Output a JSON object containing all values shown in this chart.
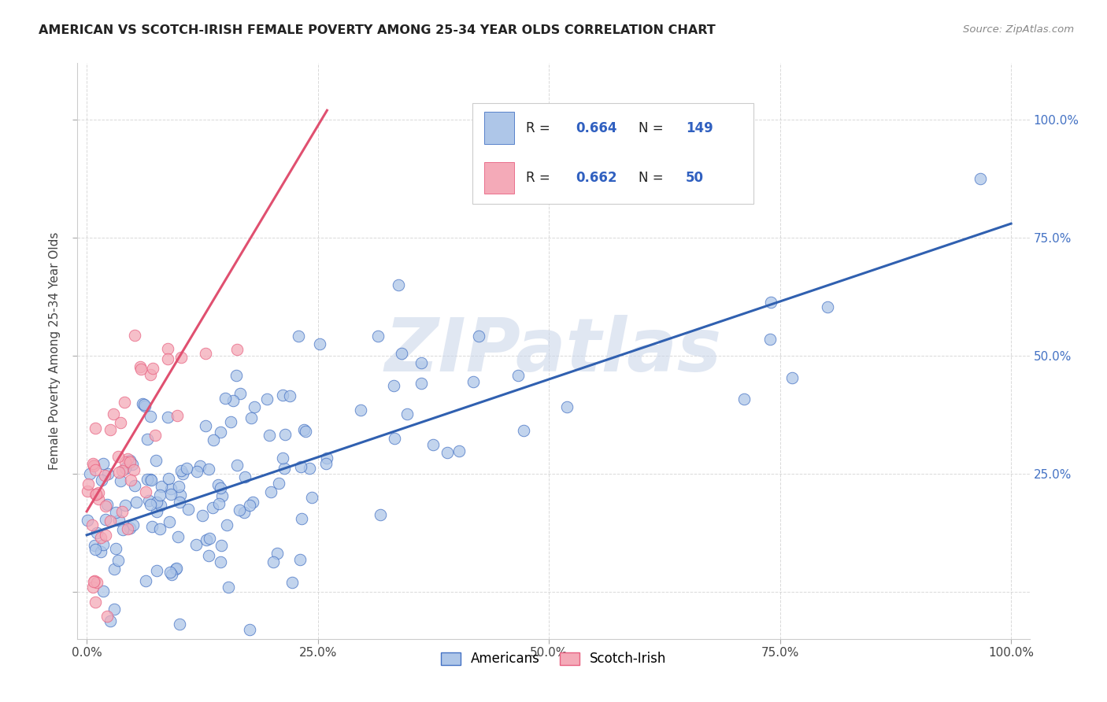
{
  "title": "AMERICAN VS SCOTCH-IRISH FEMALE POVERTY AMONG 25-34 YEAR OLDS CORRELATION CHART",
  "source": "Source: ZipAtlas.com",
  "ylabel": "Female Poverty Among 25-34 Year Olds",
  "blue_R": 0.664,
  "blue_N": 149,
  "pink_R": 0.662,
  "pink_N": 50,
  "blue_color": "#aec6e8",
  "pink_color": "#f4aab8",
  "blue_edge_color": "#4472c4",
  "pink_edge_color": "#e86080",
  "blue_line_color": "#3060b0",
  "pink_line_color": "#e05070",
  "legend_blue_color": "#3060c0",
  "background_color": "#ffffff",
  "grid_color": "#d0d0d0",
  "title_color": "#222222",
  "source_color": "#888888",
  "right_tick_color": "#4472c4",
  "watermark_color": "#c8d4e8",
  "watermark_text": "ZIPatlas",
  "xlim": [
    -0.01,
    1.02
  ],
  "ylim": [
    -0.1,
    1.12
  ],
  "xtick_vals": [
    0.0,
    0.25,
    0.5,
    0.75,
    1.0
  ],
  "xtick_labels": [
    "0.0%",
    "25.0%",
    "50.0%",
    "75.0%",
    "100.0%"
  ],
  "ytick_vals": [
    0.0,
    0.25,
    0.5,
    0.75,
    1.0
  ],
  "right_ytick_vals": [
    0.25,
    0.5,
    0.75,
    1.0
  ],
  "right_ytick_labels": [
    "25.0%",
    "50.0%",
    "75.0%",
    "100.0%"
  ],
  "blue_line_x": [
    0.0,
    1.0
  ],
  "blue_line_y": [
    0.12,
    0.78
  ],
  "pink_line_x": [
    0.0,
    0.26
  ],
  "pink_line_y": [
    0.17,
    1.02
  ]
}
